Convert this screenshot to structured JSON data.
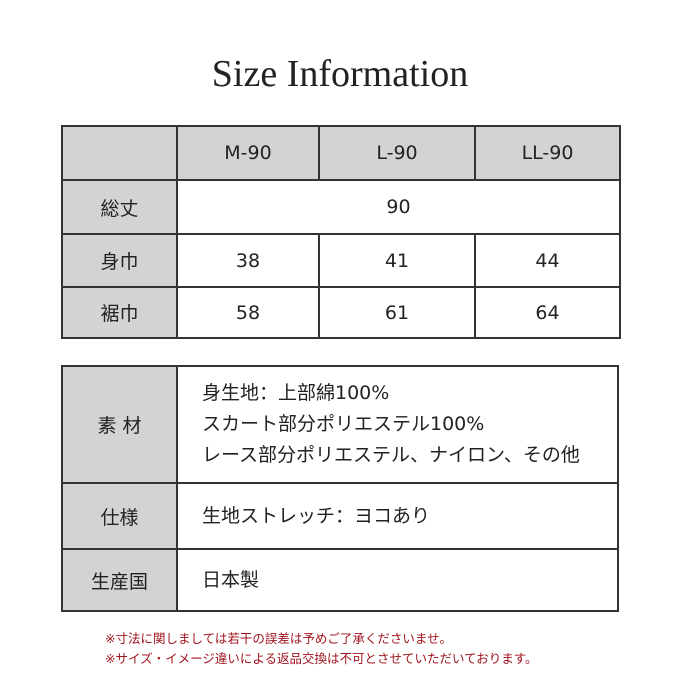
{
  "title": "Size Information",
  "size_table": {
    "headers": [
      "M-90",
      "L-90",
      "LL-90"
    ],
    "rows": [
      {
        "label": "総丈",
        "merged": "90"
      },
      {
        "label": "身巾",
        "values": [
          "38",
          "41",
          "44"
        ]
      },
      {
        "label": "裾巾",
        "values": [
          "58",
          "61",
          "64"
        ]
      }
    ]
  },
  "info_table": {
    "rows": [
      {
        "label": "素 材",
        "lines": [
          "身生地：上部綿100%",
          "スカート部分ポリエステル100%",
          "レース部分ポリエステル、ナイロン、その他"
        ]
      },
      {
        "label": "仕様",
        "lines": [
          "生地ストレッチ：ヨコあり"
        ]
      },
      {
        "label": "生産国",
        "lines": [
          "日本製"
        ]
      }
    ]
  },
  "notes": [
    "※寸法に関しましては若干の誤差は予めご了承くださいませ。",
    "※サイズ・イメージ違いによる返品交換は不可とさせていただいております。"
  ],
  "colors": {
    "header_bg": "#d3d3d3",
    "border": "#333333",
    "note": "#a0141e"
  }
}
